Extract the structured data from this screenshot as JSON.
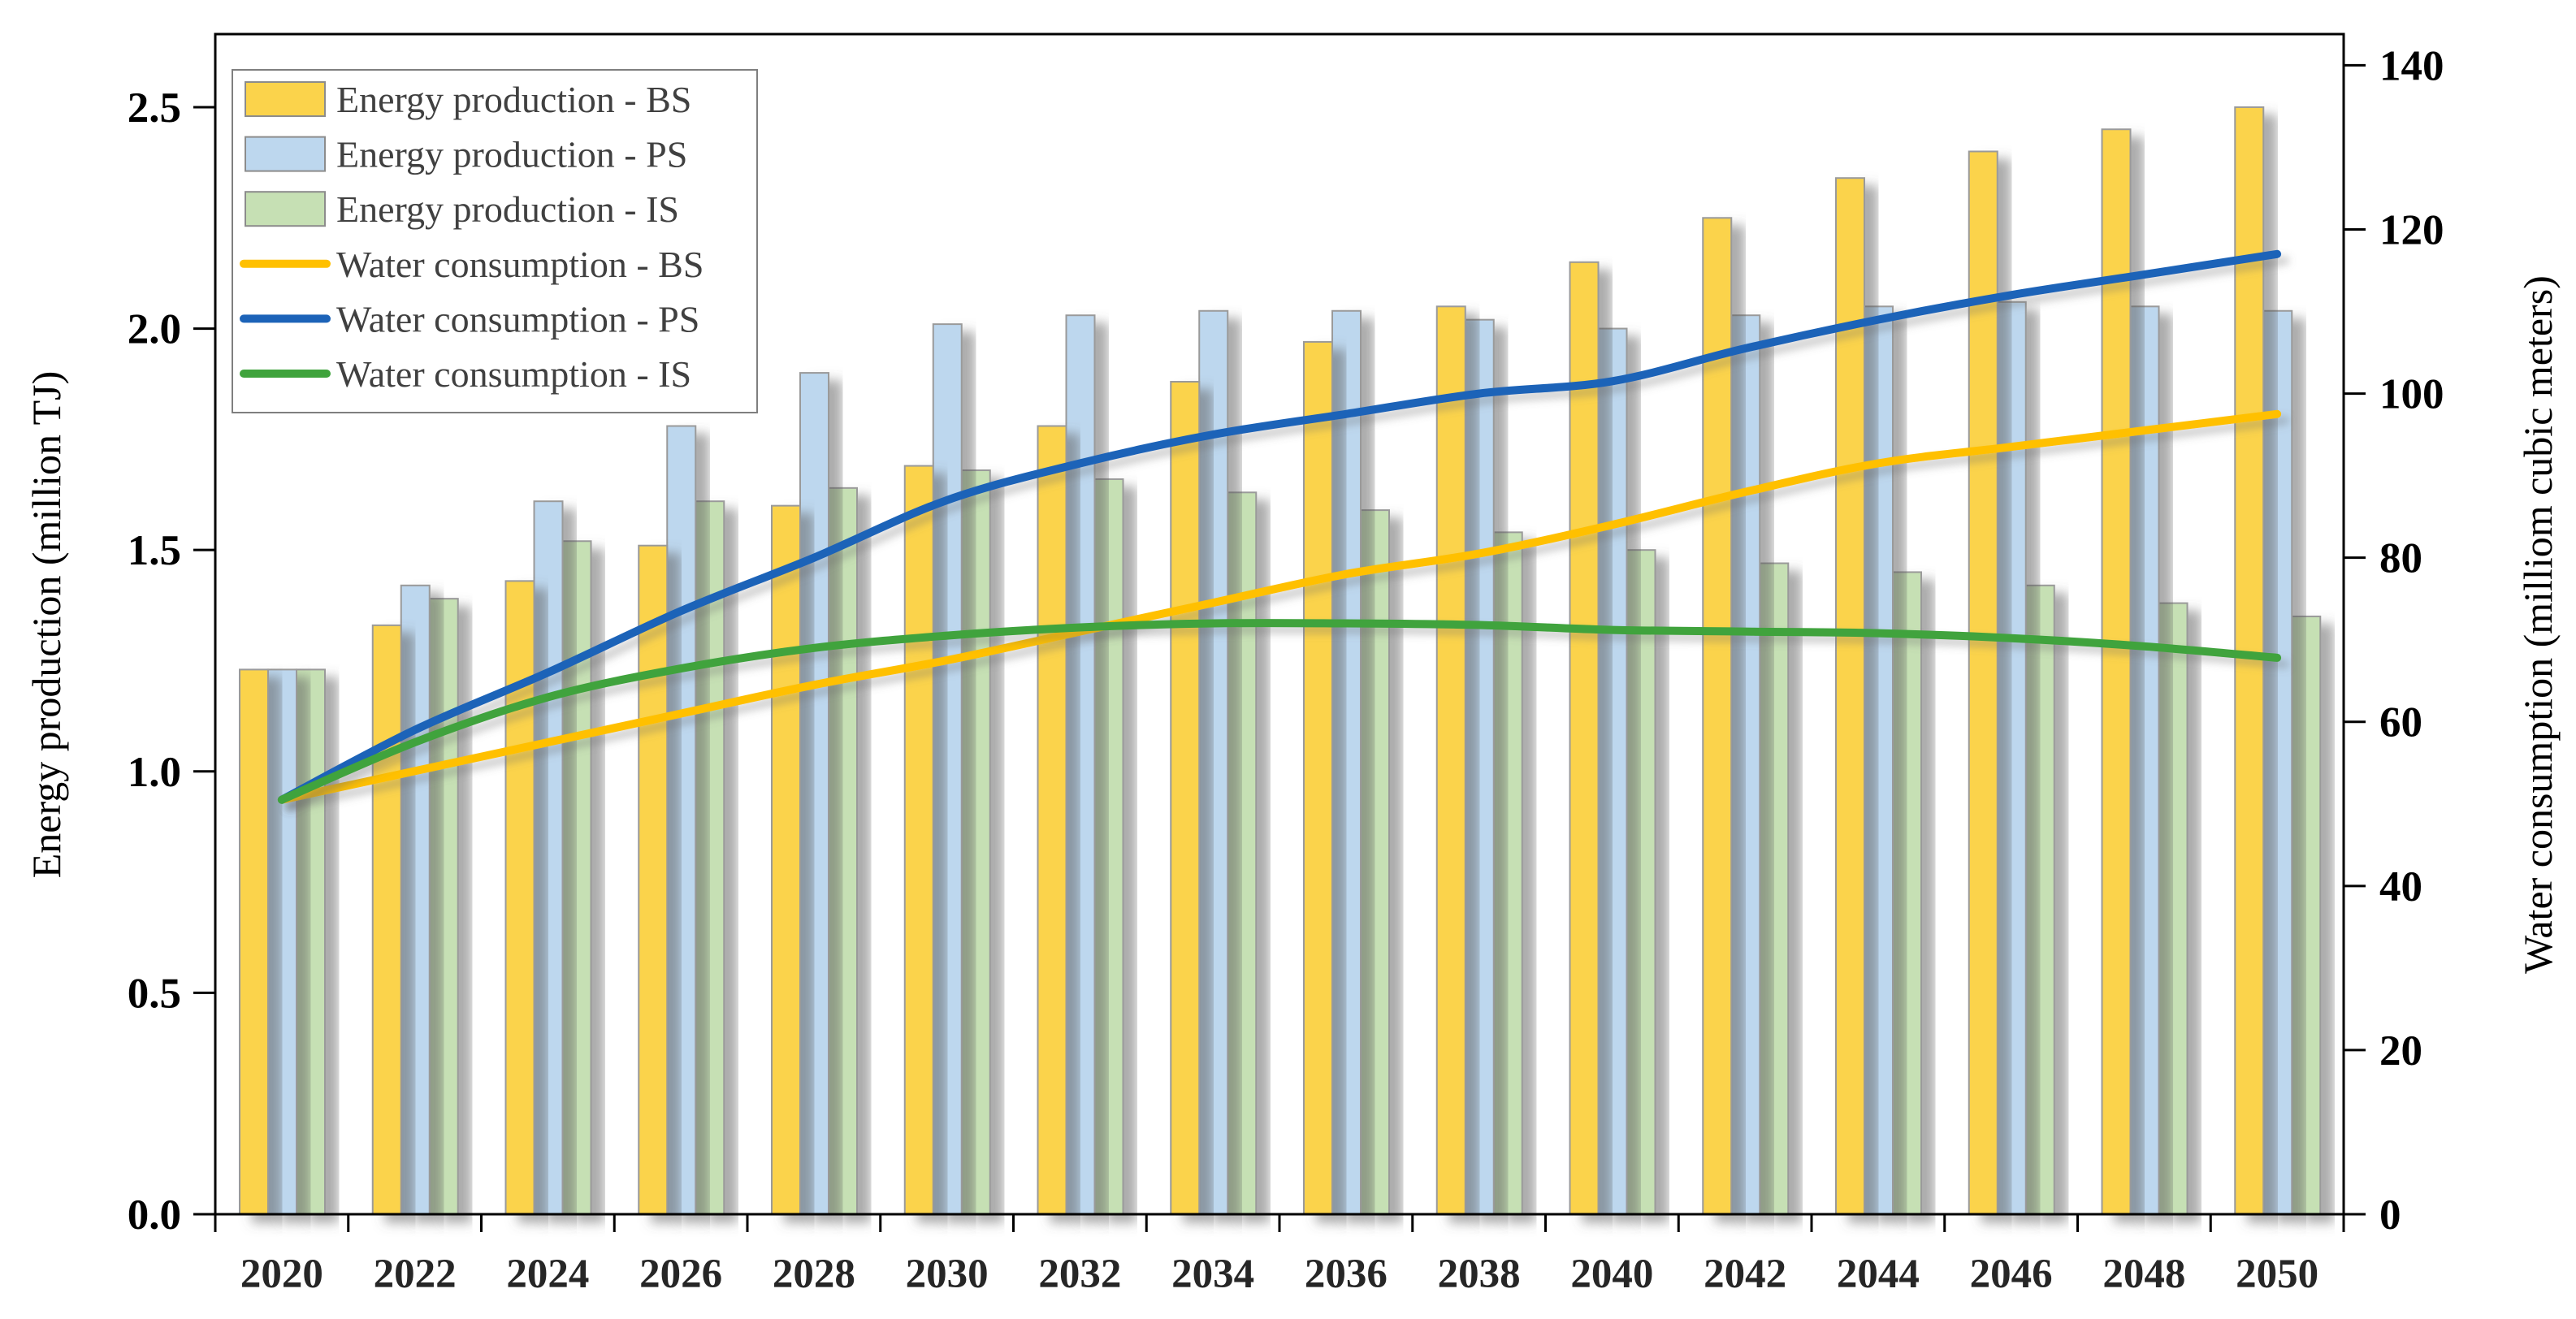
{
  "chart_data": {
    "type": "bar+line",
    "categories": [
      "2020",
      "2022",
      "2024",
      "2026",
      "2028",
      "2030",
      "2032",
      "2034",
      "2036",
      "2038",
      "2040",
      "2042",
      "2044",
      "2046",
      "2048",
      "2050"
    ],
    "bar_series": [
      {
        "name": "Energy production - BS",
        "axis": "left",
        "color": "#FBD34B",
        "values": [
          1.23,
          1.33,
          1.43,
          1.51,
          1.6,
          1.69,
          1.78,
          1.88,
          1.97,
          2.05,
          2.15,
          2.25,
          2.34,
          2.4,
          2.45,
          2.5
        ]
      },
      {
        "name": "Energy production - PS",
        "axis": "left",
        "color": "#BDD7EE",
        "values": [
          1.23,
          1.42,
          1.61,
          1.78,
          1.9,
          2.01,
          2.03,
          2.04,
          2.04,
          2.02,
          2.0,
          2.03,
          2.05,
          2.06,
          2.05,
          2.04
        ]
      },
      {
        "name": "Energy production - IS",
        "axis": "left",
        "color": "#C6E0B4",
        "values": [
          1.23,
          1.39,
          1.52,
          1.61,
          1.64,
          1.68,
          1.66,
          1.63,
          1.59,
          1.54,
          1.5,
          1.47,
          1.45,
          1.42,
          1.38,
          1.35
        ]
      }
    ],
    "line_series": [
      {
        "name": "Water consumption - BS",
        "axis": "right",
        "color": "#FFC000",
        "values": [
          50.5,
          54,
          57.5,
          61,
          64.5,
          67.5,
          71,
          74.5,
          78,
          80.5,
          84,
          88,
          91.5,
          93.5,
          95.5,
          97.5
        ]
      },
      {
        "name": "Water consumption - PS",
        "axis": "right",
        "color": "#1C63B8",
        "values": [
          50.5,
          59,
          66,
          73.5,
          80,
          87,
          91.5,
          95,
          97.5,
          100,
          101.5,
          105.5,
          109,
          112,
          114.5,
          117
        ]
      },
      {
        "name": "Water consumption - IS",
        "axis": "right",
        "color": "#3FA33C",
        "values": [
          50.5,
          57.5,
          63,
          66.5,
          69,
          70.5,
          71.5,
          72,
          72,
          71.8,
          71.2,
          71,
          70.8,
          70.2,
          69.2,
          67.8
        ]
      }
    ],
    "ylabel_left": "Energy production (million TJ)",
    "ylabel_right": "Water consumption (milliom cubic meters)",
    "yticks_left": [
      "0.0",
      "0.5",
      "1.0",
      "1.5",
      "2.0",
      "2.5"
    ],
    "ytick_values_left": [
      0,
      0.5,
      1.0,
      1.5,
      2.0,
      2.5
    ],
    "yticks_right": [
      "0",
      "20",
      "40",
      "60",
      "80",
      "100",
      "120",
      "140"
    ],
    "ytick_values_right": [
      0,
      20,
      40,
      60,
      80,
      100,
      120,
      140
    ],
    "ylim_left": [
      0,
      2.665
    ],
    "ylim_right": [
      0,
      143.8
    ],
    "grid": false,
    "legend_position": "upper-left",
    "legend": [
      {
        "label": "Energy production - BS",
        "swatch": "bar",
        "color": "#FBD34B"
      },
      {
        "label": "Energy production - PS",
        "swatch": "bar",
        "color": "#BDD7EE"
      },
      {
        "label": "Energy production - IS",
        "swatch": "bar",
        "color": "#C6E0B4"
      },
      {
        "label": "Water consumption - BS",
        "swatch": "line",
        "color": "#FFC000"
      },
      {
        "label": "Water consumption - PS",
        "swatch": "line",
        "color": "#1C63B8"
      },
      {
        "label": "Water consumption - IS",
        "swatch": "line",
        "color": "#3FA33C"
      }
    ]
  }
}
